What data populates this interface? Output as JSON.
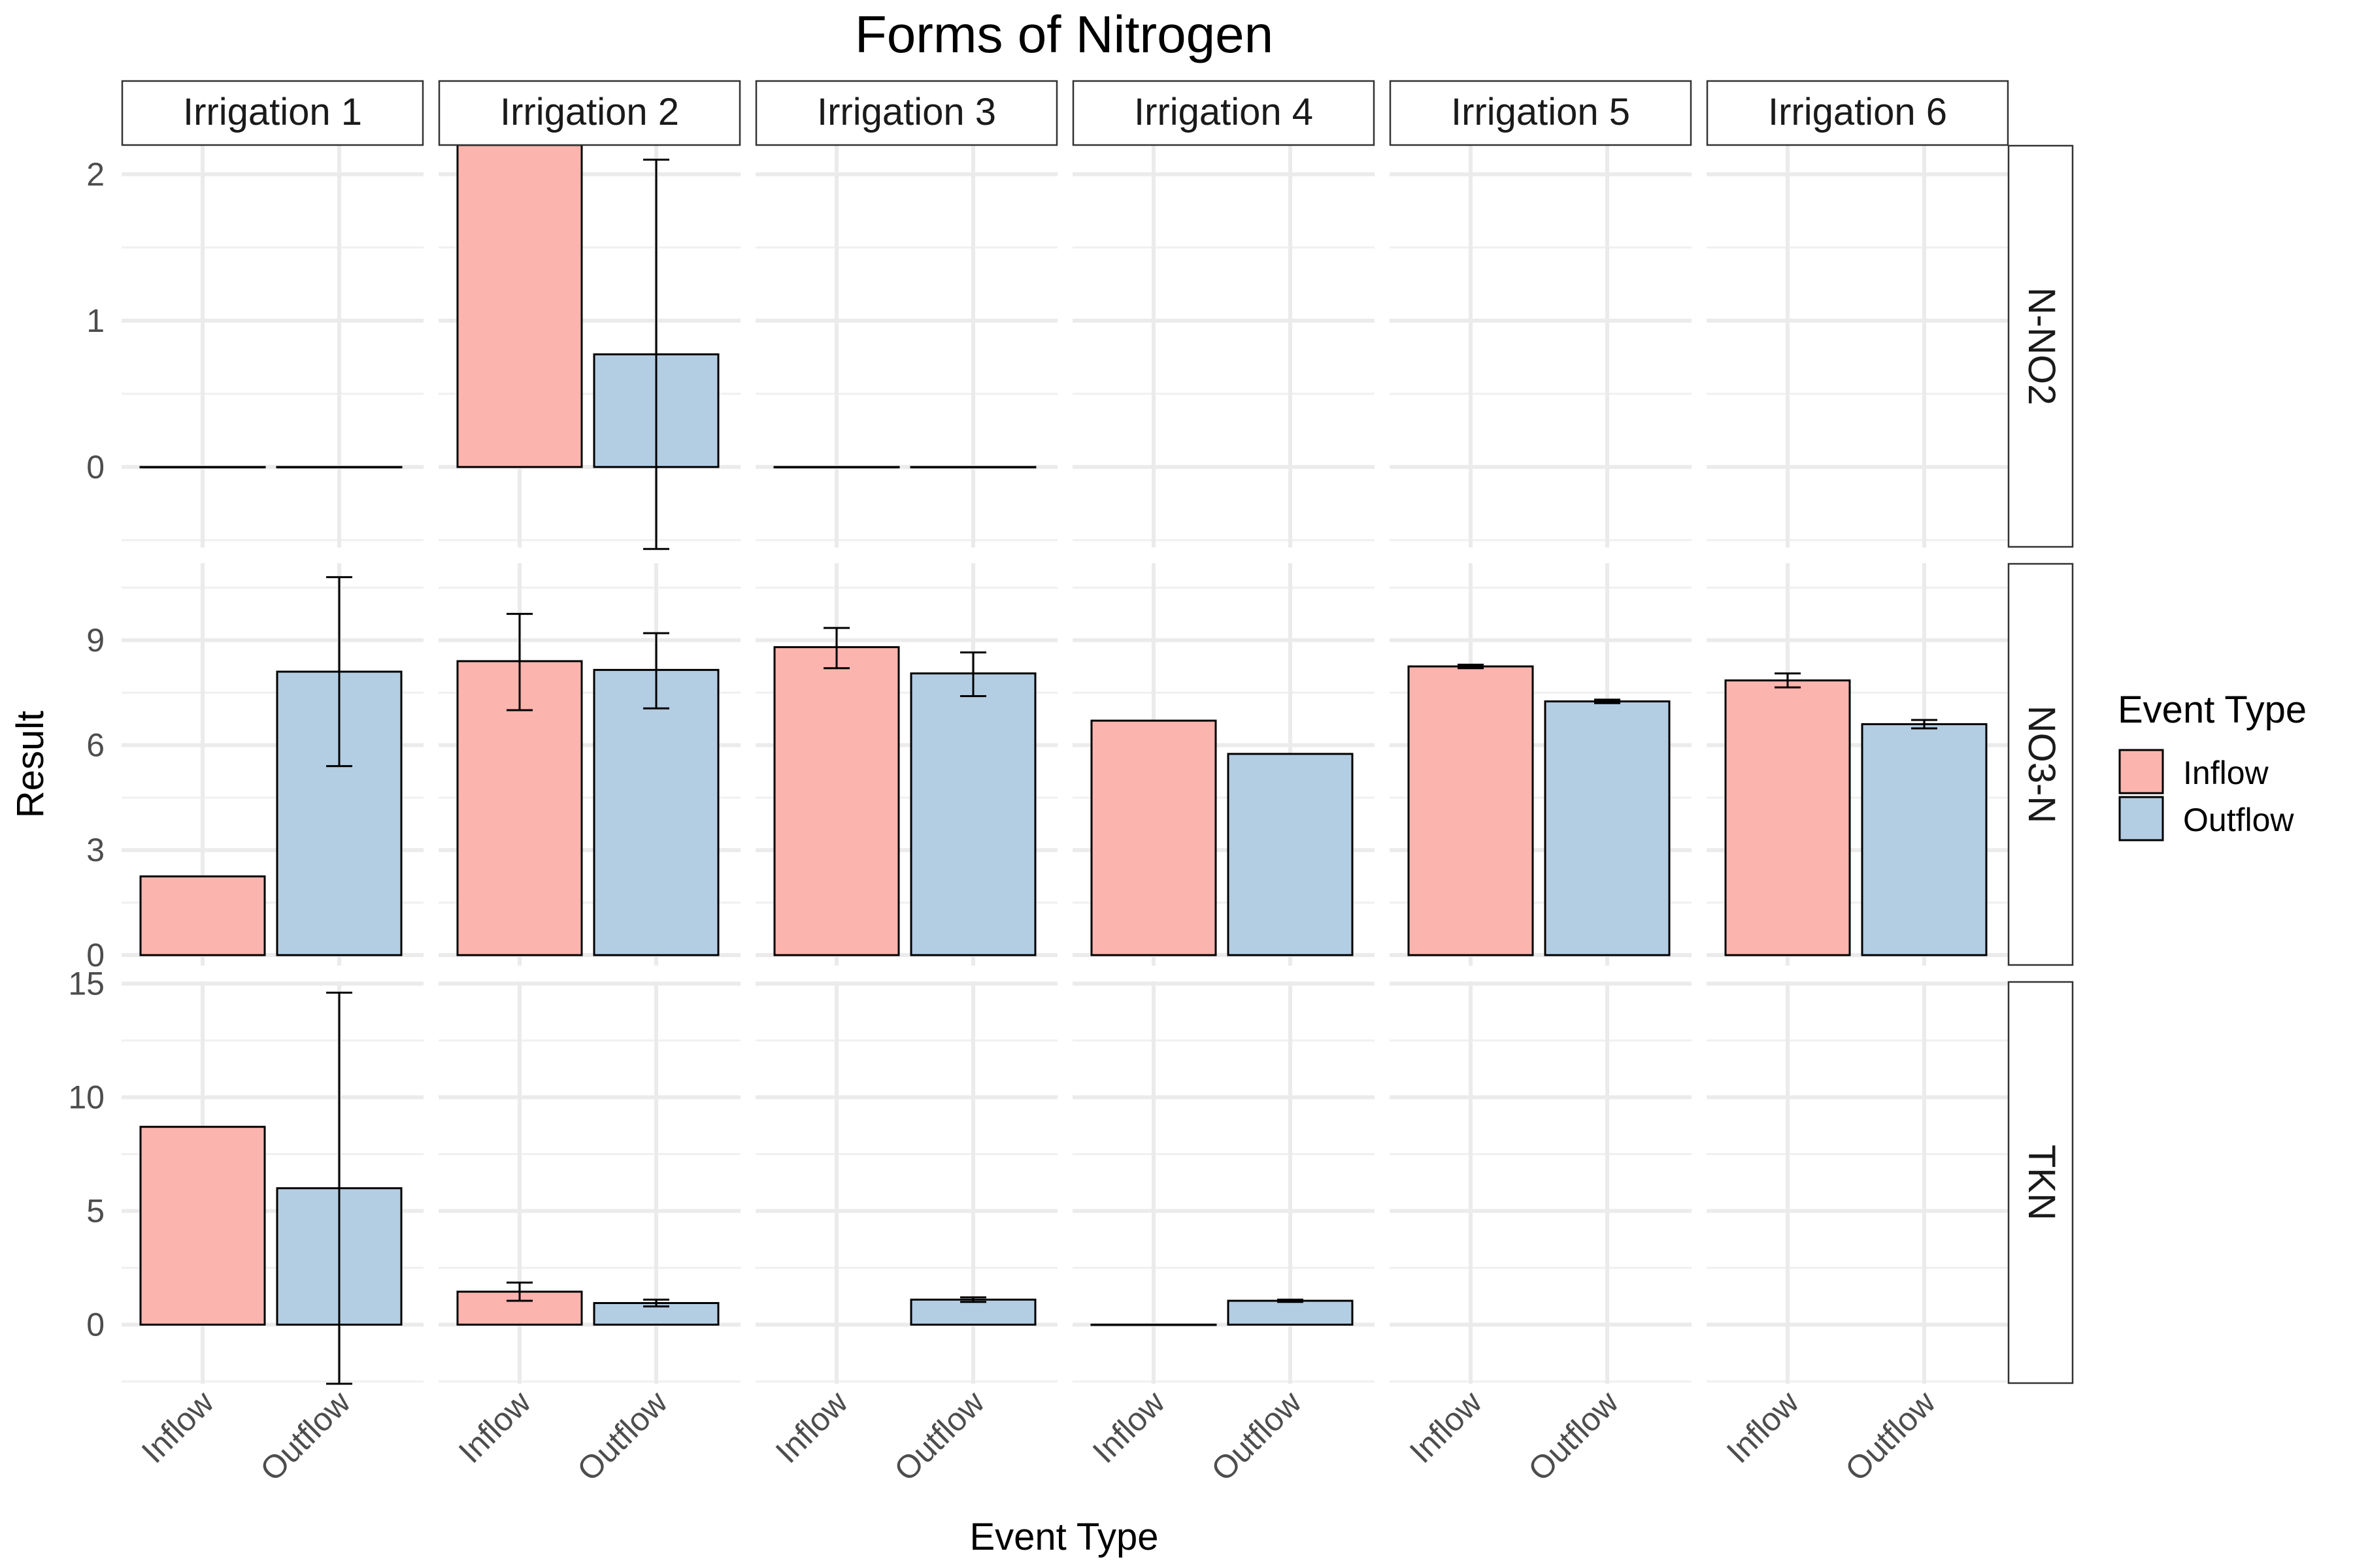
{
  "chart_data": {
    "type": "bar",
    "title": "Forms of Nitrogen",
    "xlabel": "Event Type",
    "ylabel": "Result",
    "categories": [
      "Inflow",
      "Outflow"
    ],
    "facet_columns": [
      "Irrigation 1",
      "Irrigation 2",
      "Irrigation 3",
      "Irrigation 4",
      "Irrigation 5",
      "Irrigation 6"
    ],
    "legend": {
      "title": "Event Type",
      "position": "right",
      "entries": [
        {
          "label": "Inflow",
          "color": "#FBB4AE"
        },
        {
          "label": "Outflow",
          "color": "#B3CDE3"
        }
      ]
    },
    "grid": true,
    "facet_rows": [
      {
        "label": "N-NO2",
        "ylim": [
          -0.55,
          2.2
        ],
        "yticks": [
          0,
          1,
          2
        ],
        "bars": [
          {
            "irrigation": "Irrigation 1",
            "event": "Inflow",
            "value": 0
          },
          {
            "irrigation": "Irrigation 1",
            "event": "Outflow",
            "value": 0
          },
          {
            "irrigation": "Irrigation 2",
            "event": "Inflow",
            "value": 2.2
          },
          {
            "irrigation": "Irrigation 2",
            "event": "Outflow",
            "value": 0.77,
            "err_low": -0.56,
            "err_high": 2.1
          },
          {
            "irrigation": "Irrigation 3",
            "event": "Inflow",
            "value": 0
          },
          {
            "irrigation": "Irrigation 3",
            "event": "Outflow",
            "value": 0
          }
        ]
      },
      {
        "label": "NO3-N",
        "ylim": [
          -0.3,
          11.2
        ],
        "yticks": [
          0,
          3,
          6,
          9
        ],
        "bars": [
          {
            "irrigation": "Irrigation 1",
            "event": "Inflow",
            "value": 2.25
          },
          {
            "irrigation": "Irrigation 1",
            "event": "Outflow",
            "value": 8.1,
            "err_low": 5.4,
            "err_high": 10.8
          },
          {
            "irrigation": "Irrigation 2",
            "event": "Inflow",
            "value": 8.4,
            "err_low": 7.0,
            "err_high": 9.75
          },
          {
            "irrigation": "Irrigation 2",
            "event": "Outflow",
            "value": 8.15,
            "err_low": 7.05,
            "err_high": 9.2
          },
          {
            "irrigation": "Irrigation 3",
            "event": "Inflow",
            "value": 8.8,
            "err_low": 8.2,
            "err_high": 9.35
          },
          {
            "irrigation": "Irrigation 3",
            "event": "Outflow",
            "value": 8.05,
            "err_low": 7.4,
            "err_high": 8.65
          },
          {
            "irrigation": "Irrigation 4",
            "event": "Inflow",
            "value": 6.7
          },
          {
            "irrigation": "Irrigation 4",
            "event": "Outflow",
            "value": 5.75
          },
          {
            "irrigation": "Irrigation 5",
            "event": "Inflow",
            "value": 8.25,
            "err_low": 8.2,
            "err_high": 8.3
          },
          {
            "irrigation": "Irrigation 5",
            "event": "Outflow",
            "value": 7.25,
            "err_low": 7.2,
            "err_high": 7.3
          },
          {
            "irrigation": "Irrigation 6",
            "event": "Inflow",
            "value": 7.85,
            "err_low": 7.65,
            "err_high": 8.05
          },
          {
            "irrigation": "Irrigation 6",
            "event": "Outflow",
            "value": 6.6,
            "err_low": 6.48,
            "err_high": 6.72
          }
        ]
      },
      {
        "label": "TKN",
        "ylim": [
          -2.6,
          15.1
        ],
        "yticks": [
          0,
          5,
          10,
          15
        ],
        "bars": [
          {
            "irrigation": "Irrigation 1",
            "event": "Inflow",
            "value": 8.7
          },
          {
            "irrigation": "Irrigation 1",
            "event": "Outflow",
            "value": 6.0,
            "err_low": -2.6,
            "err_high": 14.6
          },
          {
            "irrigation": "Irrigation 2",
            "event": "Inflow",
            "value": 1.45,
            "err_low": 1.05,
            "err_high": 1.85
          },
          {
            "irrigation": "Irrigation 2",
            "event": "Outflow",
            "value": 0.95,
            "err_low": 0.8,
            "err_high": 1.1
          },
          {
            "irrigation": "Irrigation 3",
            "event": "Outflow",
            "value": 1.1,
            "err_low": 1.0,
            "err_high": 1.2
          },
          {
            "irrigation": "Irrigation 4",
            "event": "Inflow",
            "value": 0
          },
          {
            "irrigation": "Irrigation 4",
            "event": "Outflow",
            "value": 1.05,
            "err_low": 1.0,
            "err_high": 1.1
          }
        ]
      }
    ]
  }
}
